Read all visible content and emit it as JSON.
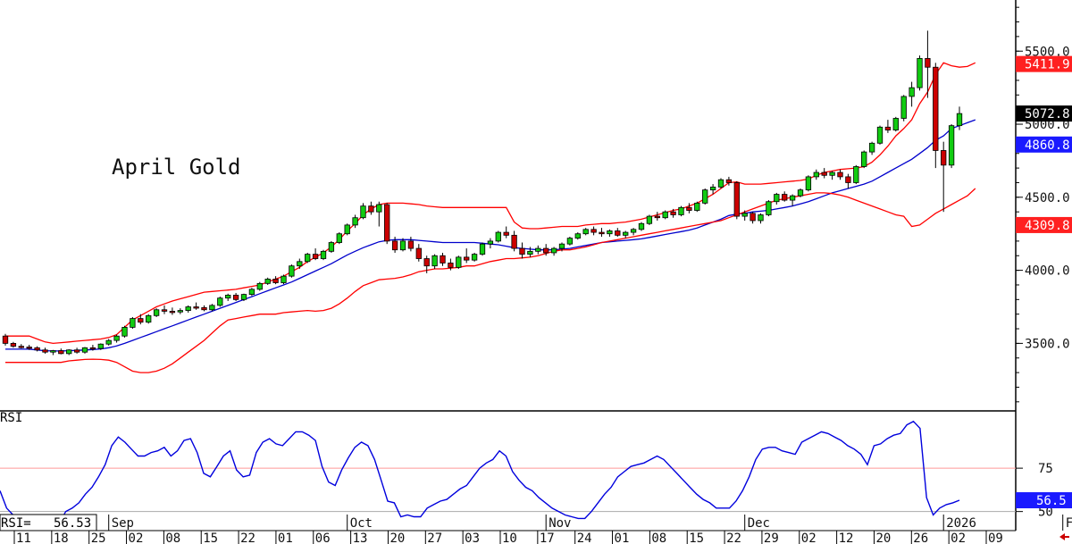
{
  "chart_data": [
    {
      "type": "candlestick",
      "title": "April Gold",
      "ylim": [
        3050,
        5850
      ],
      "yticks": [
        3500.0,
        4000.0,
        4500.0,
        5000.0,
        5500.0
      ],
      "ytick_labels": [
        "3500.0",
        "4000.0",
        "4500.0",
        "5000.0",
        "5500.0"
      ],
      "price_badges": [
        {
          "label": "5411.9",
          "value": 5411.9,
          "color": "#ff2020",
          "text_color": "#ffffff"
        },
        {
          "label": "5072.8",
          "value": 5072.8,
          "color": "#000000",
          "text_color": "#ffffff"
        },
        {
          "label": "4860.8",
          "value": 4860.8,
          "color": "#1a1aff",
          "text_color": "#ffffff"
        },
        {
          "label": "4309.8",
          "value": 4309.8,
          "color": "#ff2020",
          "text_color": "#ffffff"
        }
      ],
      "colors": {
        "up": "#11cc11",
        "down": "#cc0000",
        "upper_band": "#ff0000",
        "middle_band": "#0000cc",
        "lower_band": "#ff0000"
      },
      "candles": [
        [
          3550,
          3565,
          3485,
          3500
        ],
        [
          3500,
          3510,
          3470,
          3480
        ],
        [
          3480,
          3495,
          3465,
          3475
        ],
        [
          3475,
          3490,
          3455,
          3470
        ],
        [
          3470,
          3480,
          3445,
          3455
        ],
        [
          3455,
          3470,
          3430,
          3440
        ],
        [
          3440,
          3455,
          3420,
          3450
        ],
        [
          3450,
          3465,
          3425,
          3430
        ],
        [
          3430,
          3460,
          3420,
          3455
        ],
        [
          3455,
          3470,
          3430,
          3440
        ],
        [
          3440,
          3475,
          3430,
          3470
        ],
        [
          3470,
          3490,
          3450,
          3465
        ],
        [
          3465,
          3500,
          3455,
          3495
        ],
        [
          3495,
          3530,
          3485,
          3520
        ],
        [
          3520,
          3560,
          3505,
          3550
        ],
        [
          3550,
          3620,
          3540,
          3610
        ],
        [
          3610,
          3680,
          3600,
          3670
        ],
        [
          3670,
          3700,
          3630,
          3645
        ],
        [
          3645,
          3700,
          3635,
          3690
        ],
        [
          3690,
          3740,
          3680,
          3730
        ],
        [
          3730,
          3760,
          3700,
          3720
        ],
        [
          3720,
          3745,
          3695,
          3715
        ],
        [
          3715,
          3740,
          3700,
          3725
        ],
        [
          3725,
          3760,
          3710,
          3750
        ],
        [
          3750,
          3780,
          3730,
          3745
        ],
        [
          3745,
          3760,
          3720,
          3730
        ],
        [
          3730,
          3770,
          3720,
          3760
        ],
        [
          3760,
          3820,
          3750,
          3810
        ],
        [
          3810,
          3840,
          3790,
          3830
        ],
        [
          3830,
          3845,
          3790,
          3800
        ],
        [
          3800,
          3840,
          3790,
          3835
        ],
        [
          3835,
          3880,
          3825,
          3870
        ],
        [
          3870,
          3920,
          3860,
          3910
        ],
        [
          3910,
          3950,
          3900,
          3940
        ],
        [
          3940,
          3960,
          3905,
          3915
        ],
        [
          3915,
          3970,
          3905,
          3960
        ],
        [
          3960,
          4040,
          3950,
          4030
        ],
        [
          4030,
          4080,
          4010,
          4060
        ],
        [
          4060,
          4120,
          4050,
          4110
        ],
        [
          4110,
          4150,
          4070,
          4080
        ],
        [
          4080,
          4140,
          4070,
          4130
        ],
        [
          4130,
          4200,
          4120,
          4190
        ],
        [
          4190,
          4260,
          4180,
          4250
        ],
        [
          4250,
          4320,
          4240,
          4310
        ],
        [
          4310,
          4380,
          4290,
          4360
        ],
        [
          4360,
          4460,
          4350,
          4440
        ],
        [
          4440,
          4470,
          4380,
          4400
        ],
        [
          4400,
          4470,
          4300,
          4450
        ],
        [
          4450,
          4460,
          4180,
          4200
        ],
        [
          4200,
          4230,
          4120,
          4140
        ],
        [
          4140,
          4220,
          4130,
          4200
        ],
        [
          4200,
          4230,
          4130,
          4150
        ],
        [
          4150,
          4180,
          4060,
          4080
        ],
        [
          4080,
          4100,
          3980,
          4030
        ],
        [
          4030,
          4110,
          4010,
          4100
        ],
        [
          4100,
          4120,
          4030,
          4050
        ],
        [
          4050,
          4080,
          4000,
          4020
        ],
        [
          4020,
          4100,
          4010,
          4090
        ],
        [
          4090,
          4150,
          4050,
          4070
        ],
        [
          4070,
          4120,
          4060,
          4110
        ],
        [
          4110,
          4190,
          4100,
          4180
        ],
        [
          4180,
          4220,
          4150,
          4200
        ],
        [
          4200,
          4270,
          4190,
          4260
        ],
        [
          4260,
          4300,
          4220,
          4240
        ],
        [
          4240,
          4270,
          4130,
          4150
        ],
        [
          4150,
          4190,
          4080,
          4110
        ],
        [
          4110,
          4160,
          4090,
          4130
        ],
        [
          4130,
          4170,
          4110,
          4150
        ],
        [
          4150,
          4180,
          4100,
          4120
        ],
        [
          4120,
          4160,
          4100,
          4150
        ],
        [
          4150,
          4190,
          4130,
          4180
        ],
        [
          4180,
          4230,
          4170,
          4220
        ],
        [
          4220,
          4260,
          4210,
          4250
        ],
        [
          4250,
          4290,
          4240,
          4280
        ],
        [
          4280,
          4300,
          4240,
          4260
        ],
        [
          4260,
          4290,
          4230,
          4250
        ],
        [
          4250,
          4280,
          4230,
          4270
        ],
        [
          4270,
          4290,
          4230,
          4240
        ],
        [
          4240,
          4270,
          4220,
          4260
        ],
        [
          4260,
          4290,
          4240,
          4280
        ],
        [
          4280,
          4330,
          4270,
          4320
        ],
        [
          4320,
          4380,
          4310,
          4370
        ],
        [
          4370,
          4400,
          4340,
          4360
        ],
        [
          4360,
          4410,
          4350,
          4400
        ],
        [
          4400,
          4420,
          4360,
          4380
        ],
        [
          4380,
          4440,
          4370,
          4430
        ],
        [
          4430,
          4460,
          4390,
          4410
        ],
        [
          4410,
          4470,
          4400,
          4460
        ],
        [
          4460,
          4560,
          4450,
          4550
        ],
        [
          4550,
          4590,
          4520,
          4570
        ],
        [
          4570,
          4630,
          4560,
          4620
        ],
        [
          4620,
          4640,
          4580,
          4600
        ],
        [
          4600,
          4610,
          4350,
          4370
        ],
        [
          4370,
          4410,
          4340,
          4390
        ],
        [
          4390,
          4400,
          4320,
          4340
        ],
        [
          4340,
          4390,
          4320,
          4380
        ],
        [
          4380,
          4480,
          4370,
          4470
        ],
        [
          4470,
          4530,
          4450,
          4520
        ],
        [
          4520,
          4540,
          4470,
          4480
        ],
        [
          4480,
          4520,
          4440,
          4510
        ],
        [
          4510,
          4560,
          4500,
          4550
        ],
        [
          4550,
          4650,
          4540,
          4640
        ],
        [
          4640,
          4690,
          4620,
          4670
        ],
        [
          4670,
          4700,
          4630,
          4650
        ],
        [
          4650,
          4680,
          4620,
          4670
        ],
        [
          4670,
          4690,
          4620,
          4640
        ],
        [
          4640,
          4660,
          4560,
          4600
        ],
        [
          4600,
          4720,
          4590,
          4710
        ],
        [
          4710,
          4820,
          4700,
          4810
        ],
        [
          4810,
          4880,
          4790,
          4870
        ],
        [
          4870,
          4990,
          4860,
          4980
        ],
        [
          4980,
          5030,
          4940,
          4960
        ],
        [
          4960,
          5050,
          4950,
          5040
        ],
        [
          5040,
          5200,
          5020,
          5190
        ],
        [
          5190,
          5290,
          5120,
          5250
        ],
        [
          5250,
          5470,
          5230,
          5450
        ],
        [
          5450,
          5640,
          5180,
          5390
        ],
        [
          5390,
          5420,
          4700,
          4820
        ],
        [
          4820,
          4880,
          4400,
          4720
        ],
        [
          4720,
          5000,
          4700,
          4990
        ],
        [
          4990,
          5120,
          4960,
          5072.8
        ]
      ],
      "upper_band": [
        3550,
        3550,
        3550,
        3550,
        3530,
        3510,
        3500,
        3505,
        3510,
        3515,
        3520,
        3525,
        3530,
        3540,
        3560,
        3610,
        3660,
        3690,
        3720,
        3750,
        3770,
        3790,
        3805,
        3820,
        3835,
        3850,
        3855,
        3860,
        3865,
        3870,
        3880,
        3890,
        3900,
        3920,
        3940,
        3960,
        3990,
        4020,
        4060,
        4090,
        4120,
        4160,
        4210,
        4270,
        4320,
        4380,
        4420,
        4450,
        4460,
        4460,
        4460,
        4455,
        4450,
        4440,
        4435,
        4430,
        4430,
        4430,
        4430,
        4430,
        4430,
        4430,
        4430,
        4430,
        4330,
        4290,
        4285,
        4285,
        4290,
        4295,
        4300,
        4300,
        4300,
        4310,
        4315,
        4320,
        4320,
        4325,
        4330,
        4340,
        4350,
        4365,
        4380,
        4395,
        4410,
        4420,
        4440,
        4460,
        4490,
        4520,
        4560,
        4600,
        4605,
        4590,
        4590,
        4590,
        4595,
        4600,
        4605,
        4610,
        4615,
        4625,
        4650,
        4670,
        4680,
        4690,
        4695,
        4700,
        4710,
        4740,
        4790,
        4850,
        4920,
        4970,
        5030,
        5140,
        5220,
        5340,
        5420,
        5400,
        5390,
        5395,
        5420
      ],
      "middle_band": [
        3460,
        3460,
        3460,
        3460,
        3455,
        3450,
        3448,
        3448,
        3450,
        3452,
        3455,
        3458,
        3462,
        3470,
        3482,
        3500,
        3520,
        3540,
        3560,
        3580,
        3600,
        3620,
        3640,
        3660,
        3680,
        3700,
        3720,
        3740,
        3760,
        3780,
        3800,
        3820,
        3840,
        3860,
        3880,
        3900,
        3920,
        3945,
        3970,
        3995,
        4020,
        4045,
        4075,
        4105,
        4130,
        4155,
        4175,
        4195,
        4205,
        4210,
        4210,
        4210,
        4205,
        4200,
        4195,
        4190,
        4190,
        4190,
        4190,
        4190,
        4185,
        4180,
        4175,
        4165,
        4155,
        4150,
        4145,
        4140,
        4140,
        4140,
        4145,
        4150,
        4160,
        4170,
        4180,
        4190,
        4195,
        4200,
        4205,
        4210,
        4215,
        4225,
        4235,
        4245,
        4255,
        4265,
        4275,
        4290,
        4310,
        4330,
        4350,
        4375,
        4385,
        4390,
        4400,
        4405,
        4410,
        4420,
        4430,
        4440,
        4455,
        4470,
        4490,
        4510,
        4530,
        4545,
        4560,
        4575,
        4590,
        4610,
        4640,
        4670,
        4700,
        4730,
        4760,
        4800,
        4840,
        4890,
        4920,
        4970,
        4990,
        5010,
        5030
      ],
      "lower_band": [
        3370,
        3370,
        3370,
        3370,
        3370,
        3370,
        3370,
        3370,
        3380,
        3385,
        3390,
        3392,
        3390,
        3385,
        3370,
        3340,
        3310,
        3300,
        3300,
        3310,
        3330,
        3360,
        3400,
        3440,
        3480,
        3520,
        3570,
        3620,
        3660,
        3670,
        3680,
        3690,
        3700,
        3700,
        3700,
        3710,
        3715,
        3720,
        3725,
        3720,
        3725,
        3740,
        3770,
        3810,
        3855,
        3895,
        3915,
        3935,
        3940,
        3945,
        3955,
        3970,
        3990,
        4000,
        4010,
        4010,
        4015,
        4020,
        4030,
        4030,
        4045,
        4060,
        4070,
        4080,
        4080,
        4085,
        4090,
        4100,
        4115,
        4130,
        4140,
        4140,
        4150,
        4160,
        4175,
        4190,
        4200,
        4210,
        4220,
        4230,
        4240,
        4250,
        4260,
        4270,
        4280,
        4290,
        4300,
        4310,
        4320,
        4330,
        4340,
        4360,
        4380,
        4400,
        4420,
        4440,
        4460,
        4480,
        4490,
        4500,
        4510,
        4520,
        4530,
        4530,
        4525,
        4515,
        4500,
        4480,
        4460,
        4440,
        4420,
        4400,
        4380,
        4370,
        4300,
        4310,
        4350,
        4390,
        4420,
        4450,
        4480,
        4510,
        4560
      ]
    },
    {
      "type": "line",
      "label": "RSI",
      "value_label": "RSI=",
      "value_text": "56.53",
      "badge_label": "56.5",
      "badge_value": 56.5,
      "ylim": [
        39,
        107
      ],
      "yticks": [
        50,
        75
      ],
      "ytick_labels": [
        "50",
        "75"
      ],
      "reference_lines": [
        75,
        50
      ],
      "colors": {
        "line": "#0000dd",
        "ref75": "#ff9999",
        "ref50": "#aaaaaa",
        "badge": "#1a1aff"
      },
      "values": [
        62,
        52,
        48,
        48,
        46,
        45,
        41,
        43,
        45,
        43,
        50,
        52,
        55,
        60,
        64,
        70,
        77,
        88,
        93,
        90,
        86,
        82,
        82,
        84,
        85,
        87,
        82,
        85,
        91,
        92,
        84,
        72,
        70,
        76,
        82,
        85,
        74,
        70,
        71,
        84,
        90,
        92,
        89,
        88,
        92,
        96,
        96,
        94,
        91,
        76,
        67,
        65,
        74,
        81,
        87,
        90,
        88,
        80,
        68,
        56,
        55,
        47,
        48,
        47,
        47,
        52,
        54,
        56,
        57,
        60,
        63,
        65,
        70,
        75,
        78,
        80,
        85,
        82,
        73,
        68,
        64,
        62,
        58,
        55,
        52,
        50,
        48,
        47,
        46,
        46,
        50,
        55,
        60,
        64,
        70,
        73,
        76,
        77,
        78,
        80,
        82,
        80,
        76,
        72,
        68,
        64,
        60,
        57,
        55,
        52,
        52,
        52,
        56,
        62,
        70,
        80,
        86,
        87,
        87,
        85,
        84,
        83,
        90,
        92,
        94,
        96,
        95,
        93,
        91,
        88,
        86,
        83,
        77,
        88,
        89,
        92,
        94,
        95,
        100,
        102,
        98,
        58,
        48,
        52,
        54,
        55,
        56.53
      ]
    }
  ],
  "x_axis": {
    "month_labels": [
      {
        "label": "Sep",
        "index": 13
      },
      {
        "label": "Oct",
        "index": 43
      },
      {
        "label": "Nov",
        "index": 68
      },
      {
        "label": "Dec",
        "index": 93
      },
      {
        "label": "2026",
        "index": 118
      },
      {
        "label": "Feb",
        "index": 133
      }
    ],
    "day_labels": [
      "11",
      "18",
      "25",
      "02",
      "08",
      "15",
      "22",
      "01",
      "06",
      "13",
      "20",
      "27",
      "03",
      "10",
      "17",
      "24",
      "01",
      "08",
      "15",
      "22",
      "29",
      "02",
      "12",
      "20",
      "26",
      "02",
      "09"
    ]
  }
}
